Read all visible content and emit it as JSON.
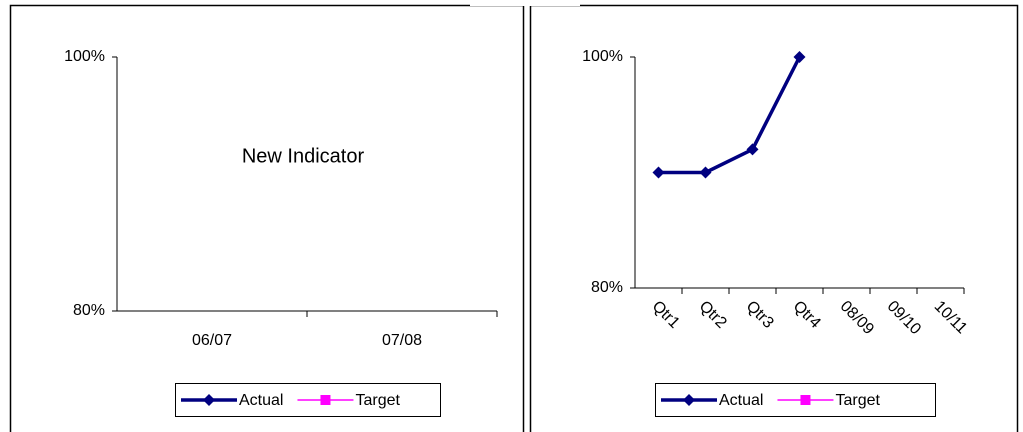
{
  "chart_data": [
    {
      "type": "line",
      "annotation": "New Indicator",
      "categories": [
        "06/07",
        "07/08"
      ],
      "series": [
        {
          "name": "Actual",
          "color": "#000080",
          "marker": "diamond",
          "values": [
            null,
            null
          ]
        },
        {
          "name": "Target",
          "color": "#ff00ff",
          "marker": "square",
          "values": [
            null,
            null
          ]
        }
      ],
      "ylim": [
        80,
        100
      ],
      "yticks": [
        {
          "value": 80,
          "label": "80%"
        },
        {
          "value": 100,
          "label": "100%"
        }
      ],
      "rotate_labels": false
    },
    {
      "type": "line",
      "categories": [
        "Qtr1",
        "Qtr2",
        "Qtr3",
        "Qtr4",
        "08/09",
        "09/10",
        "10/11"
      ],
      "series": [
        {
          "name": "Actual",
          "color": "#000080",
          "marker": "diamond",
          "values": [
            90,
            90,
            92,
            100,
            null,
            null,
            null
          ]
        },
        {
          "name": "Target",
          "color": "#ff00ff",
          "marker": "square",
          "values": [
            null,
            null,
            null,
            null,
            null,
            null,
            null
          ]
        }
      ],
      "ylim": [
        80,
        100
      ],
      "yticks": [
        {
          "value": 80,
          "label": "80%"
        },
        {
          "value": 100,
          "label": "100%"
        }
      ],
      "rotate_labels": true
    }
  ]
}
